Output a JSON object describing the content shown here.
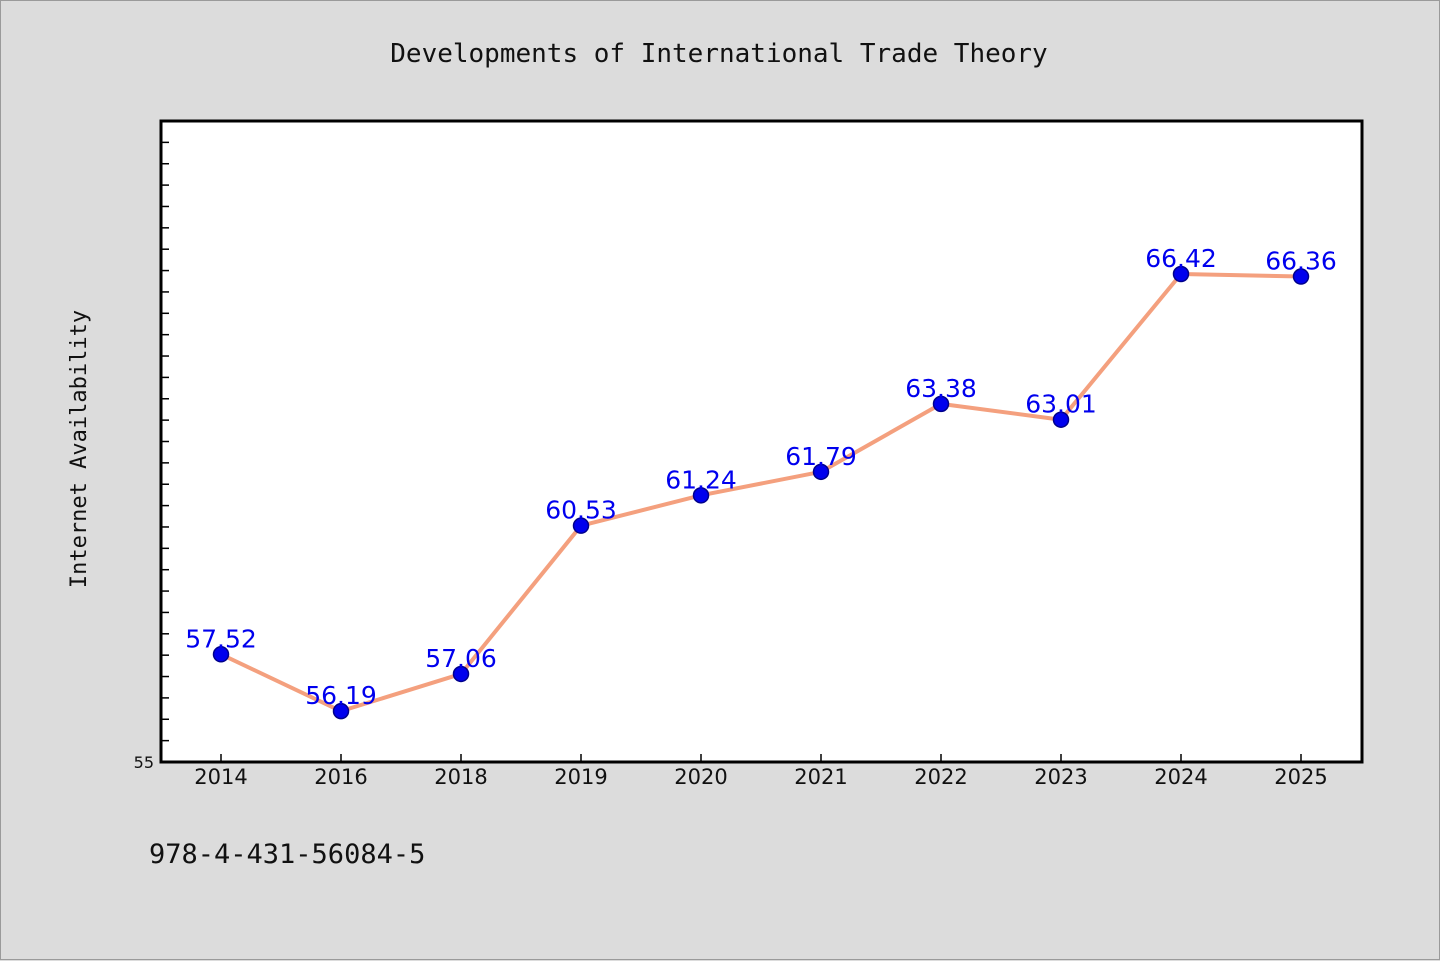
{
  "chart_data": {
    "type": "line",
    "title": "Developments of International Trade Theory",
    "xlabel": "",
    "ylabel": "Internet Availability",
    "categories": [
      "2014",
      "2016",
      "2018",
      "2019",
      "2020",
      "2021",
      "2022",
      "2023",
      "2024",
      "2025"
    ],
    "series": [
      {
        "values": [
          57.52,
          56.19,
          57.06,
          60.53,
          61.24,
          61.79,
          63.38,
          63.01,
          66.42,
          66.36
        ]
      }
    ],
    "ylim": [
      55,
      70
    ],
    "ytick_labels": [
      "55"
    ],
    "grid": false,
    "colors": {
      "line": "#f4a07e",
      "marker": "#0000ee",
      "data_label": "#0000ee",
      "plot_background": "#ffffff",
      "page_background": "#dcdcdc"
    }
  },
  "footer": {
    "code": "978-4-431-56084-5"
  }
}
